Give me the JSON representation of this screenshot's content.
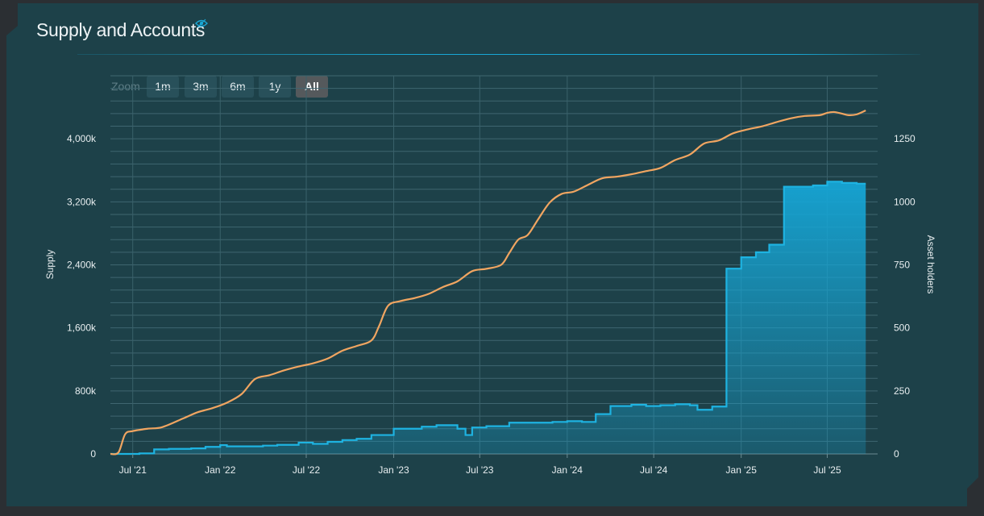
{
  "title": "Supply and Accounts",
  "zoom": {
    "label": "Zoom",
    "options": [
      "1m",
      "3m",
      "6m",
      "1y",
      "All"
    ],
    "selected": "All"
  },
  "colors": {
    "supply": "#f0a561",
    "holders": "#1eb3e1",
    "accent": "#18a8d6",
    "background": "#1d4149"
  },
  "chart_data": {
    "type": "line",
    "x_axis": {
      "type": "date",
      "tick_labels": [
        "Jul '21",
        "Jan '22",
        "Jul '22",
        "Jan '23",
        "Jul '23",
        "Jan '24",
        "Jul '24",
        "Jan '25",
        "Jul '25"
      ],
      "range": [
        "2021-05-15",
        "2025-10-15"
      ]
    },
    "y_left": {
      "label": "Supply",
      "ticks": [
        "0",
        "800k",
        "1,600k",
        "2,400k",
        "3,200k",
        "4,000k"
      ],
      "range": [
        0,
        4800000
      ]
    },
    "y_right": {
      "label": "Asset holders",
      "ticks": [
        "0",
        "250",
        "500",
        "750",
        "1000",
        "1250"
      ],
      "range": [
        0,
        1500
      ]
    },
    "grid": true,
    "series": [
      {
        "name": "Supply",
        "axis": "left",
        "type": "spline",
        "points": [
          [
            "2021-05-15",
            0
          ],
          [
            "2021-06-01",
            20000
          ],
          [
            "2021-06-15",
            250000
          ],
          [
            "2021-07-01",
            290000
          ],
          [
            "2021-08-01",
            320000
          ],
          [
            "2021-09-01",
            340000
          ],
          [
            "2021-10-15",
            450000
          ],
          [
            "2021-11-15",
            530000
          ],
          [
            "2021-12-15",
            580000
          ],
          [
            "2022-01-15",
            650000
          ],
          [
            "2022-02-15",
            760000
          ],
          [
            "2022-03-15",
            950000
          ],
          [
            "2022-04-15",
            1000000
          ],
          [
            "2022-05-15",
            1060000
          ],
          [
            "2022-06-15",
            1110000
          ],
          [
            "2022-07-15",
            1150000
          ],
          [
            "2022-08-15",
            1210000
          ],
          [
            "2022-09-15",
            1310000
          ],
          [
            "2022-10-15",
            1370000
          ],
          [
            "2022-11-15",
            1440000
          ],
          [
            "2022-12-01",
            1620000
          ],
          [
            "2022-12-20",
            1880000
          ],
          [
            "2023-01-15",
            1940000
          ],
          [
            "2023-02-15",
            1980000
          ],
          [
            "2023-03-15",
            2030000
          ],
          [
            "2023-04-15",
            2120000
          ],
          [
            "2023-05-15",
            2190000
          ],
          [
            "2023-06-15",
            2320000
          ],
          [
            "2023-07-15",
            2350000
          ],
          [
            "2023-08-15",
            2400000
          ],
          [
            "2023-09-01",
            2550000
          ],
          [
            "2023-09-20",
            2720000
          ],
          [
            "2023-10-10",
            2780000
          ],
          [
            "2023-11-01",
            2980000
          ],
          [
            "2023-11-25",
            3190000
          ],
          [
            "2023-12-20",
            3300000
          ],
          [
            "2024-01-15",
            3330000
          ],
          [
            "2024-02-15",
            3420000
          ],
          [
            "2024-03-15",
            3500000
          ],
          [
            "2024-04-15",
            3520000
          ],
          [
            "2024-05-15",
            3550000
          ],
          [
            "2024-06-15",
            3590000
          ],
          [
            "2024-07-15",
            3630000
          ],
          [
            "2024-08-15",
            3730000
          ],
          [
            "2024-09-15",
            3800000
          ],
          [
            "2024-10-15",
            3940000
          ],
          [
            "2024-11-15",
            3980000
          ],
          [
            "2024-12-15",
            4070000
          ],
          [
            "2025-01-15",
            4120000
          ],
          [
            "2025-02-15",
            4160000
          ],
          [
            "2025-03-15",
            4210000
          ],
          [
            "2025-04-15",
            4260000
          ],
          [
            "2025-05-15",
            4290000
          ],
          [
            "2025-06-15",
            4300000
          ],
          [
            "2025-07-01",
            4330000
          ],
          [
            "2025-07-15",
            4340000
          ],
          [
            "2025-08-01",
            4320000
          ],
          [
            "2025-08-15",
            4300000
          ],
          [
            "2025-09-01",
            4310000
          ],
          [
            "2025-09-20",
            4360000
          ]
        ]
      },
      {
        "name": "Asset holders",
        "axis": "right",
        "type": "step-area",
        "points": [
          [
            "2021-05-15",
            0
          ],
          [
            "2021-07-15",
            2
          ],
          [
            "2021-08-15",
            18
          ],
          [
            "2021-09-15",
            20
          ],
          [
            "2021-11-01",
            22
          ],
          [
            "2021-12-01",
            28
          ],
          [
            "2022-01-01",
            35
          ],
          [
            "2022-01-15",
            30
          ],
          [
            "2022-04-01",
            33
          ],
          [
            "2022-05-01",
            36
          ],
          [
            "2022-06-15",
            45
          ],
          [
            "2022-07-15",
            40
          ],
          [
            "2022-08-15",
            48
          ],
          [
            "2022-09-15",
            55
          ],
          [
            "2022-10-15",
            60
          ],
          [
            "2022-11-15",
            75
          ],
          [
            "2023-01-01",
            100
          ],
          [
            "2023-03-01",
            108
          ],
          [
            "2023-04-01",
            114
          ],
          [
            "2023-05-15",
            100
          ],
          [
            "2023-06-01",
            75
          ],
          [
            "2023-06-15",
            105
          ],
          [
            "2023-07-15",
            110
          ],
          [
            "2023-09-01",
            124
          ],
          [
            "2023-12-01",
            127
          ],
          [
            "2024-01-01",
            130
          ],
          [
            "2024-02-01",
            127
          ],
          [
            "2024-03-01",
            158
          ],
          [
            "2024-04-01",
            190
          ],
          [
            "2024-05-15",
            195
          ],
          [
            "2024-06-15",
            190
          ],
          [
            "2024-07-15",
            193
          ],
          [
            "2024-08-15",
            197
          ],
          [
            "2024-09-15",
            193
          ],
          [
            "2024-10-01",
            175
          ],
          [
            "2024-11-01",
            188
          ],
          [
            "2024-12-01",
            735
          ],
          [
            "2025-01-01",
            780
          ],
          [
            "2025-02-01",
            800
          ],
          [
            "2025-03-01",
            830
          ],
          [
            "2025-04-01",
            1060
          ],
          [
            "2025-06-01",
            1065
          ],
          [
            "2025-07-01",
            1080
          ],
          [
            "2025-08-01",
            1075
          ],
          [
            "2025-09-01",
            1072
          ],
          [
            "2025-09-20",
            1072
          ]
        ]
      }
    ]
  }
}
